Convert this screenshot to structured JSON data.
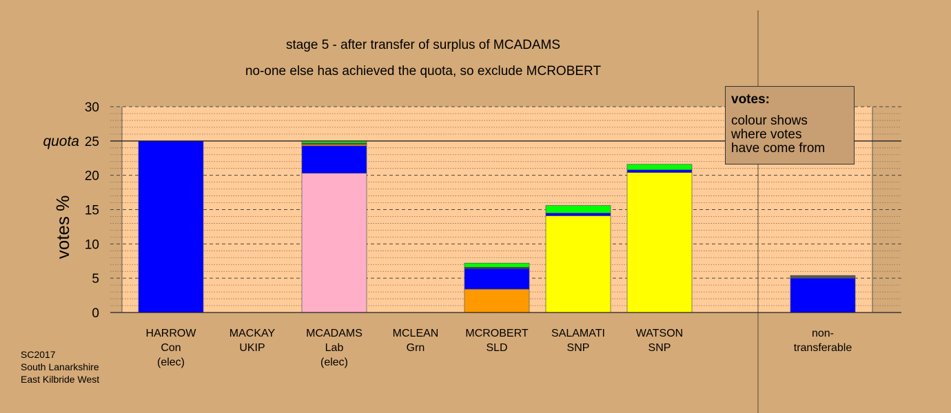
{
  "title_line1": "stage 5 - after transfer of surplus of MCADAMS",
  "title_line2": "no-one else has achieved the quota, so exclude MCROBERT",
  "legend": {
    "heading": "votes:",
    "lines": [
      "colour shows",
      "where votes",
      "have come from"
    ]
  },
  "footer": [
    "SC2017",
    "South Lanarkshire",
    "East Kilbride West"
  ],
  "chart_data": {
    "type": "bar",
    "stacked": true,
    "ylabel": "votes %",
    "ylim": [
      0,
      30
    ],
    "yticks": [
      0,
      5,
      10,
      15,
      20,
      25,
      30
    ],
    "quota": {
      "value": 25,
      "label": "quota"
    },
    "grid": true,
    "legend_position": "top-right",
    "categories": [
      {
        "lines": [
          "HARROW",
          "Con",
          "(elec)"
        ]
      },
      {
        "lines": [
          "MACKAY",
          "UKIP"
        ]
      },
      {
        "lines": [
          "MCADAMS",
          "Lab",
          "(elec)"
        ]
      },
      {
        "lines": [
          "MCLEAN",
          "Grn"
        ]
      },
      {
        "lines": [
          "MCROBERT",
          "SLD"
        ]
      },
      {
        "lines": [
          "SALAMATI",
          "SNP"
        ]
      },
      {
        "lines": [
          "WATSON",
          "SNP"
        ]
      },
      {
        "lines": [
          "non-",
          "transferable"
        ]
      }
    ],
    "segments": [
      [
        {
          "from": "Con",
          "value": 25,
          "color": "#0000ff"
        }
      ],
      [],
      [
        {
          "from": "Lab",
          "value": 20.3,
          "color": "#ffb0c8"
        },
        {
          "from": "Con",
          "value": 4.0,
          "color": "#0000ff"
        },
        {
          "from": "SLD",
          "value": 0.2,
          "color": "#ff9900"
        },
        {
          "from": "UKIP",
          "value": 0.1,
          "color": "#800080"
        },
        {
          "from": "SNP",
          "value": 0.1,
          "color": "#333333"
        },
        {
          "from": "Grn",
          "value": 0.3,
          "color": "#00ff00"
        }
      ],
      [],
      [
        {
          "from": "SLD",
          "value": 3.4,
          "color": "#ff9900"
        },
        {
          "from": "Con",
          "value": 3.0,
          "color": "#0000ff"
        },
        {
          "from": "SNP",
          "value": 0.2,
          "color": "#333333"
        },
        {
          "from": "Grn",
          "value": 0.6,
          "color": "#00ff00"
        }
      ],
      [
        {
          "from": "SNP",
          "value": 14.1,
          "color": "#ffff00"
        },
        {
          "from": "Con",
          "value": 0.4,
          "color": "#0000ff"
        },
        {
          "from": "Grn",
          "value": 1.1,
          "color": "#00ff00"
        }
      ],
      [
        {
          "from": "SNP",
          "value": 20.4,
          "color": "#ffff00"
        },
        {
          "from": "Con",
          "value": 0.4,
          "color": "#0000ff"
        },
        {
          "from": "Grn",
          "value": 0.8,
          "color": "#00ff00"
        }
      ],
      [
        {
          "from": "Con",
          "value": 5.0,
          "color": "#0000ff"
        },
        {
          "from": "other",
          "value": 0.4,
          "color": "#555555"
        }
      ]
    ]
  }
}
